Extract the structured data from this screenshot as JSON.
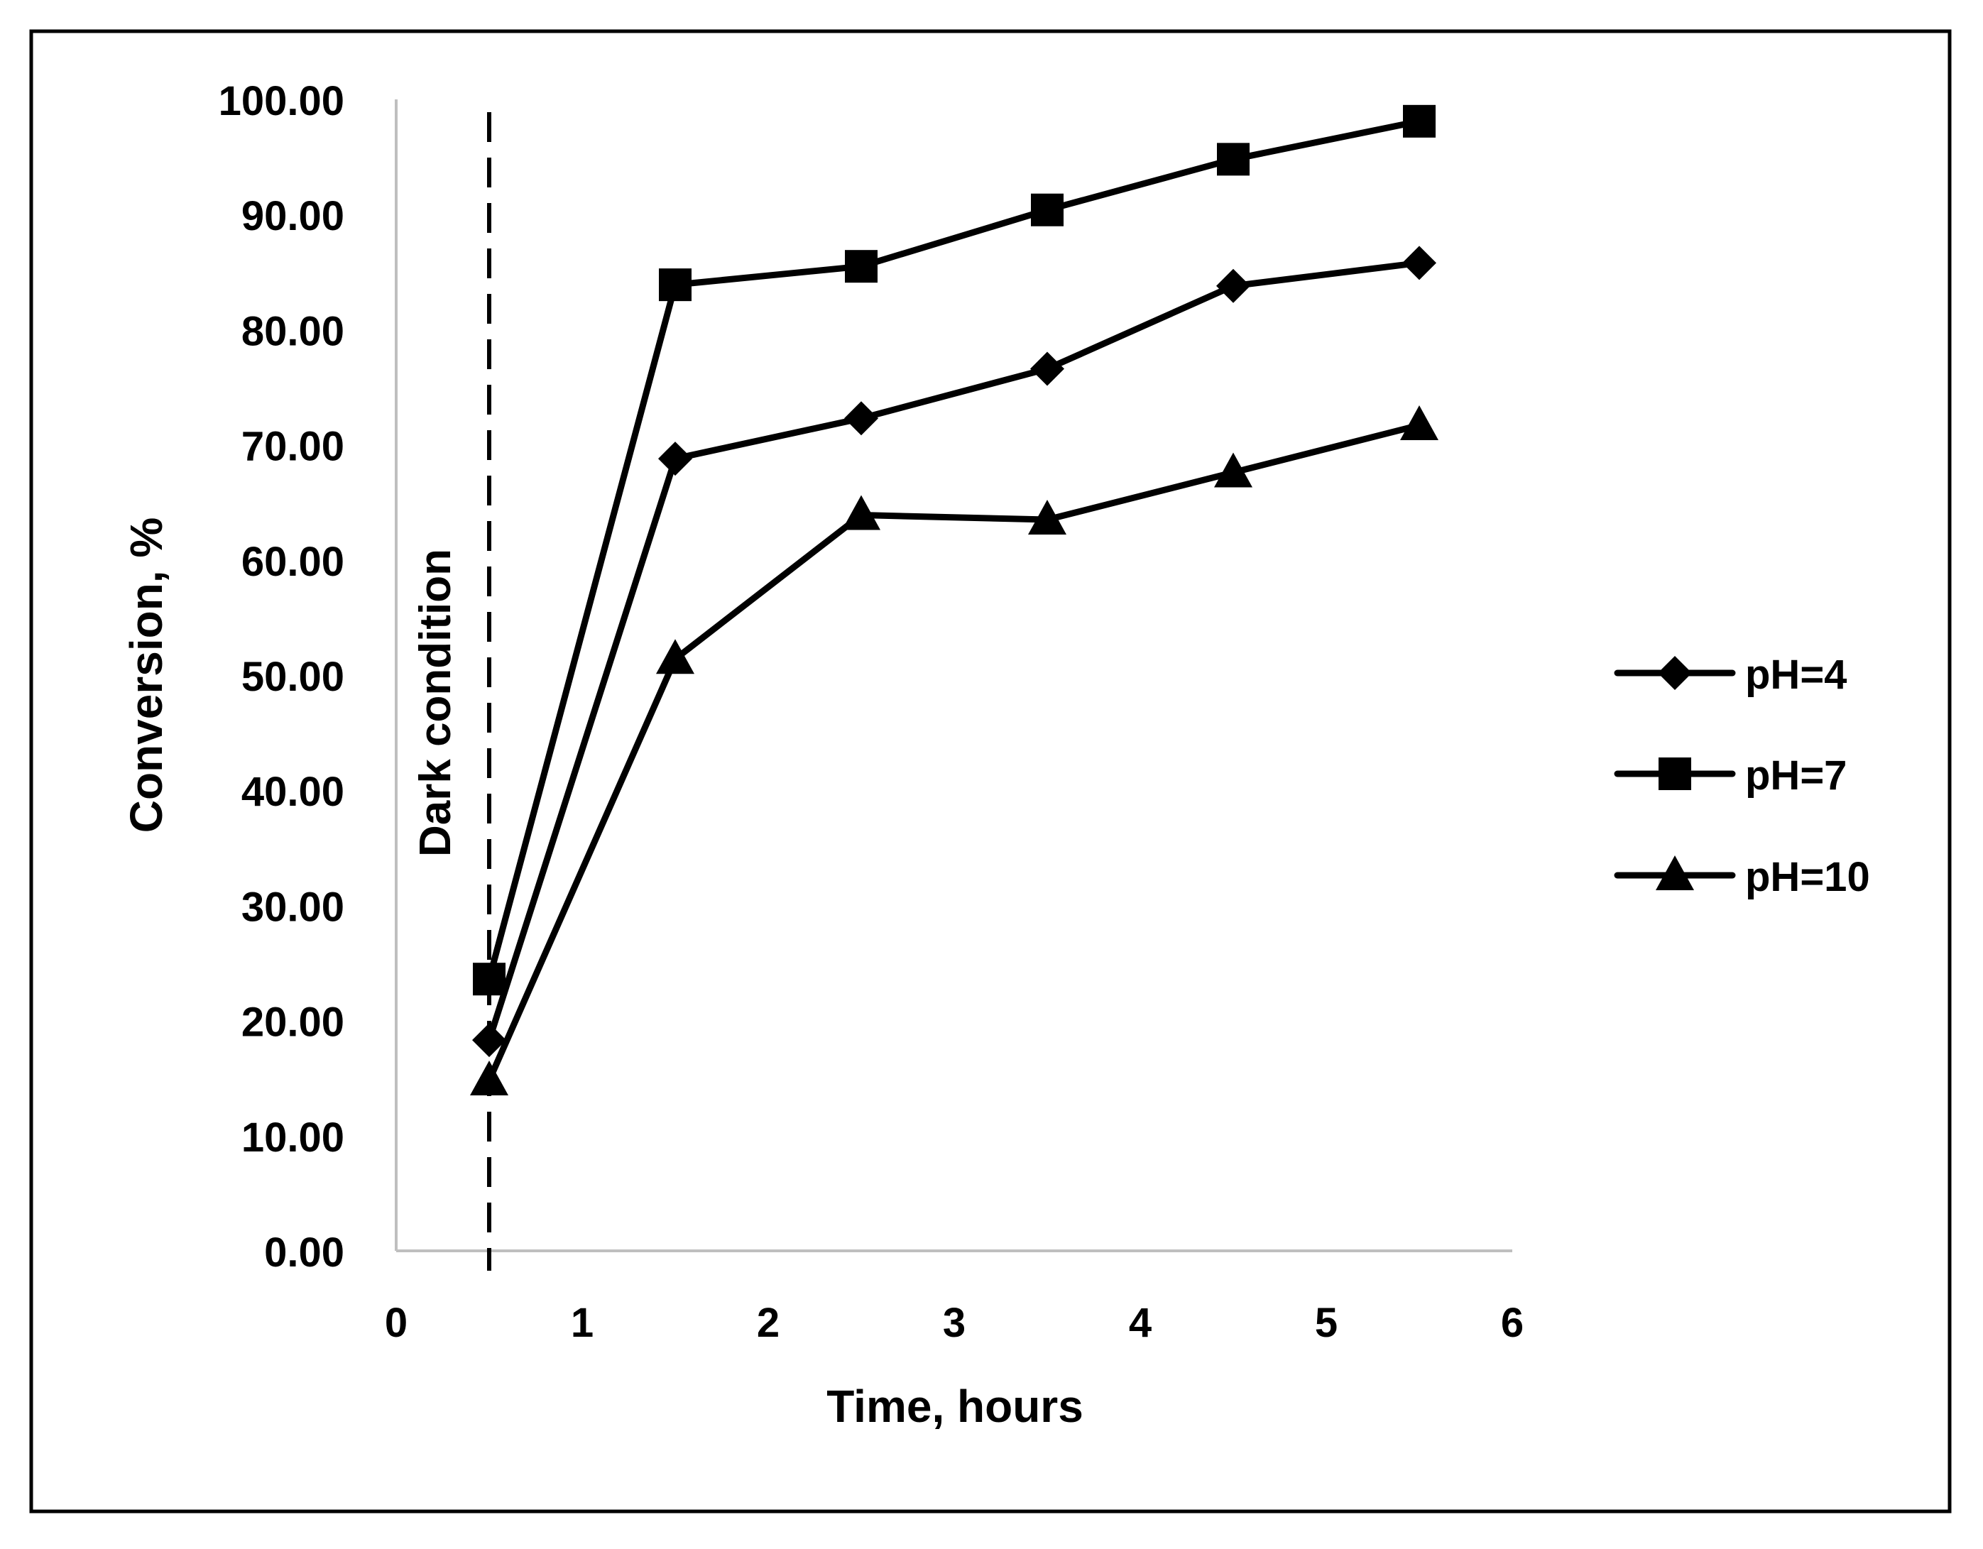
{
  "chart_data": {
    "type": "line",
    "title": "",
    "xlabel": "Time, hours",
    "ylabel": "Conversion, %",
    "xlim": [
      0,
      6
    ],
    "ylim": [
      0,
      100
    ],
    "x_ticks": [
      0,
      1,
      2,
      3,
      4,
      5,
      6
    ],
    "x_tick_labels": [
      "0",
      "1",
      "2",
      "3",
      "4",
      "5",
      "6"
    ],
    "y_ticks": [
      0,
      10,
      20,
      30,
      40,
      50,
      60,
      70,
      80,
      90,
      100
    ],
    "y_tick_labels": [
      "0.00",
      "10.00",
      "20.00",
      "30.00",
      "40.00",
      "50.00",
      "60.00",
      "70.00",
      "80.00",
      "90.00",
      "100.00"
    ],
    "grid": false,
    "legend_position": "right",
    "annotation": {
      "text": "Dark condition",
      "x": 0.5
    },
    "series": [
      {
        "name": "pH=4",
        "marker": "diamond",
        "x": [
          0.5,
          1.5,
          2.5,
          3.5,
          4.5,
          5.5
        ],
        "values": [
          18.3,
          68.8,
          72.3,
          76.6,
          83.8,
          85.8
        ]
      },
      {
        "name": "pH=7",
        "marker": "square",
        "x": [
          0.5,
          1.5,
          2.5,
          3.5,
          4.5,
          5.5
        ],
        "values": [
          23.6,
          83.9,
          85.5,
          90.4,
          94.8,
          98.1
        ]
      },
      {
        "name": "pH=10",
        "marker": "triangle",
        "x": [
          0.5,
          1.5,
          2.5,
          3.5,
          4.5,
          5.5
        ],
        "values": [
          14.8,
          51.4,
          63.9,
          63.5,
          67.6,
          71.7
        ]
      }
    ]
  }
}
